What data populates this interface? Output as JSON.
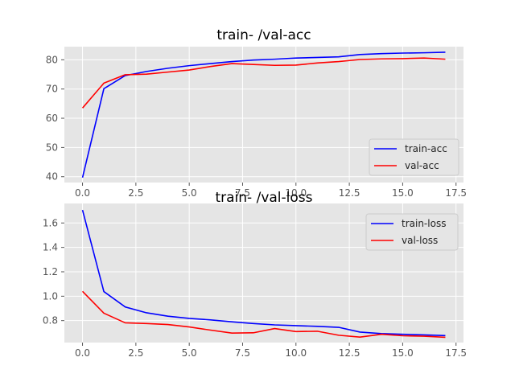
{
  "chart_data": [
    {
      "type": "line",
      "title": "train- /val-acc",
      "xlabel": "",
      "ylabel": "",
      "xlim": [
        -0.85,
        17.85
      ],
      "ylim": [
        38.0,
        84.5
      ],
      "xticks": [
        0,
        2.5,
        5,
        7.5,
        10,
        12.5,
        15,
        17.5
      ],
      "xtick_labels": [
        "0.0",
        "2.5",
        "5.0",
        "7.5",
        "10.0",
        "12.5",
        "15.0",
        "17.5"
      ],
      "yticks": [
        40,
        50,
        60,
        70,
        80
      ],
      "ytick_labels": [
        "40",
        "50",
        "60",
        "70",
        "80"
      ],
      "grid": true,
      "legend": "lower-right",
      "x": [
        0,
        1,
        2,
        3,
        4,
        5,
        6,
        7,
        8,
        9,
        10,
        11,
        12,
        13,
        14,
        15,
        16,
        17
      ],
      "series": [
        {
          "name": "train-acc",
          "color": "#0000ff",
          "values": [
            39.7,
            70.1,
            74.6,
            76.0,
            77.1,
            78.0,
            78.7,
            79.4,
            79.9,
            80.2,
            80.6,
            80.8,
            81.0,
            81.8,
            82.1,
            82.3,
            82.4,
            82.6
          ]
        },
        {
          "name": "val-acc",
          "color": "#ff0000",
          "values": [
            63.5,
            72.0,
            74.9,
            75.1,
            75.8,
            76.5,
            77.7,
            78.7,
            78.4,
            78.1,
            78.2,
            78.9,
            79.4,
            80.1,
            80.3,
            80.4,
            80.6,
            80.2
          ]
        }
      ]
    },
    {
      "type": "line",
      "title": "train- /val-loss",
      "xlabel": "",
      "ylabel": "",
      "xlim": [
        -0.85,
        17.85
      ],
      "ylim": [
        0.62,
        1.76
      ],
      "xticks": [
        0,
        2.5,
        5,
        7.5,
        10,
        12.5,
        15,
        17.5
      ],
      "xtick_labels": [
        "0.0",
        "2.5",
        "5.0",
        "7.5",
        "10.0",
        "12.5",
        "15.0",
        "17.5"
      ],
      "yticks": [
        0.8,
        1.0,
        1.2,
        1.4,
        1.6
      ],
      "ytick_labels": [
        "0.8",
        "1.0",
        "1.2",
        "1.4",
        "1.6"
      ],
      "grid": true,
      "legend": "upper-right",
      "x": [
        0,
        1,
        2,
        3,
        4,
        5,
        6,
        7,
        8,
        9,
        10,
        11,
        12,
        13,
        14,
        15,
        16,
        17
      ],
      "series": [
        {
          "name": "train-loss",
          "color": "#0000ff",
          "values": [
            1.706,
            1.038,
            0.912,
            0.864,
            0.836,
            0.818,
            0.806,
            0.79,
            0.776,
            0.765,
            0.759,
            0.753,
            0.745,
            0.706,
            0.694,
            0.688,
            0.683,
            0.677
          ]
        },
        {
          "name": "val-loss",
          "color": "#ff0000",
          "values": [
            1.04,
            0.861,
            0.782,
            0.776,
            0.768,
            0.748,
            0.722,
            0.698,
            0.7,
            0.735,
            0.71,
            0.713,
            0.68,
            0.665,
            0.688,
            0.676,
            0.672,
            0.663
          ]
        }
      ]
    }
  ]
}
